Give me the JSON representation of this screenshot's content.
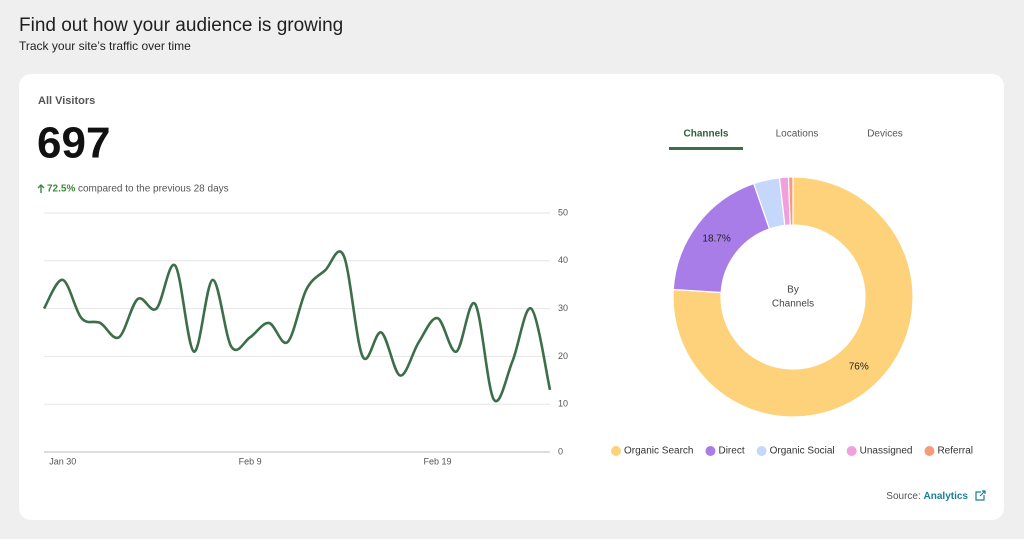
{
  "header": {
    "title": "Find out how your audience is growing",
    "subtitle": "Track your site’s traffic over time"
  },
  "card": {
    "label": "All Visitors",
    "total": "697",
    "change": "72.5%",
    "change_text": "compared to the previous 28 days",
    "tabs": [
      "Channels",
      "Locations",
      "Devices"
    ],
    "source_label": "Source:",
    "source_link": "Analytics"
  },
  "chart_data": [
    {
      "type": "line",
      "color": "#3d6e4a",
      "grid": true,
      "categories": [
        null,
        "Jan 30",
        null,
        null,
        null,
        null,
        null,
        null,
        null,
        null,
        null,
        "Feb 9",
        null,
        null,
        null,
        null,
        null,
        null,
        null,
        null,
        null,
        "Feb 19",
        null,
        null,
        null,
        null,
        null,
        null
      ],
      "values": [
        30,
        36,
        28,
        27,
        24,
        32,
        30,
        39,
        21,
        36,
        22,
        24,
        27,
        23,
        34,
        38,
        41,
        20,
        25,
        16,
        23,
        28,
        21,
        31,
        11,
        19,
        30,
        13
      ],
      "ylim": [
        0,
        50
      ],
      "yticks": [
        0,
        10,
        20,
        30,
        40,
        50
      ]
    },
    {
      "type": "donut",
      "center_label": [
        "By",
        "Channels"
      ],
      "categories": [
        "Organic Search",
        "Direct",
        "Organic Social",
        "Unassigned",
        "Referral"
      ],
      "values": [
        76,
        18.7,
        3.5,
        1.2,
        0.6
      ],
      "value_labels": [
        "76%",
        "18.7%",
        null,
        null,
        null
      ],
      "colors": [
        "#fdd27a",
        "#a87de8",
        "#c5d8fc",
        "#f0a0dc",
        "#f59b7a"
      ]
    }
  ]
}
